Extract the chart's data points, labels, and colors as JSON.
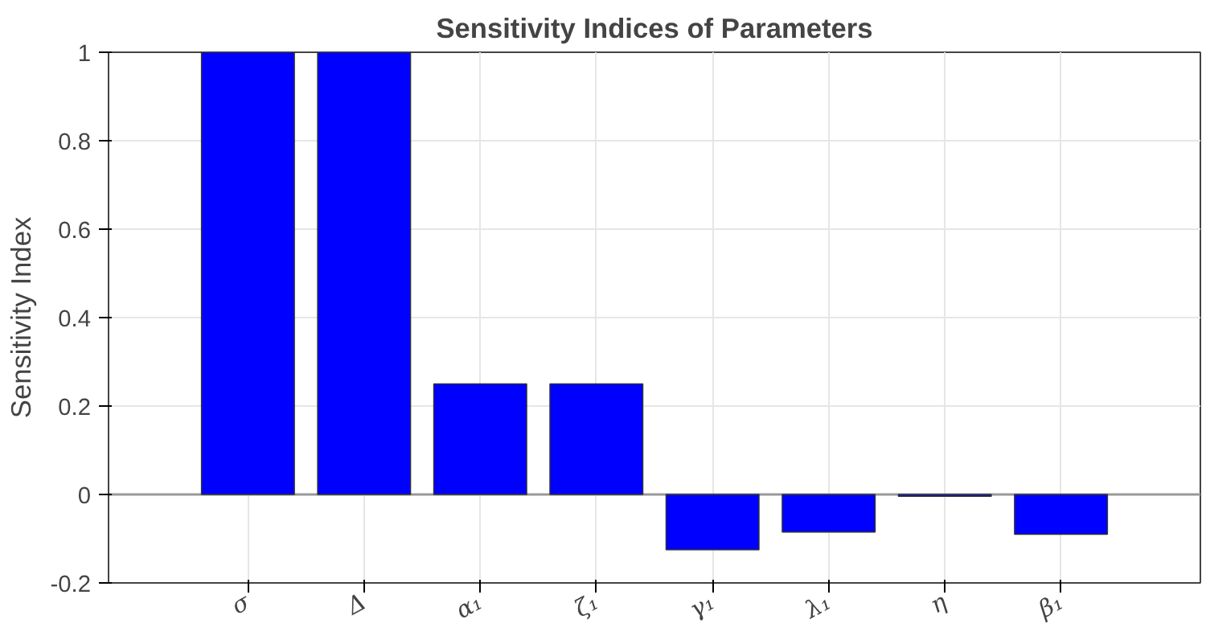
{
  "chart_data": {
    "type": "bar",
    "title": "Sensitivity Indices of Parameters",
    "ylabel": "Sensitivity Index",
    "categories": [
      "σ",
      "Δ",
      "α₁",
      "ζ₁",
      "γ₁",
      "λ₁",
      "η",
      "β₁"
    ],
    "values": [
      1,
      1,
      0.25,
      0.25,
      -0.125,
      -0.085,
      -0.004,
      -0.09
    ],
    "color": "#0000ff",
    "ylim": [
      -0.2,
      1
    ],
    "yticks": [
      -0.2,
      0,
      0.2,
      0.4,
      0.6,
      0.8,
      1
    ],
    "grid": true
  }
}
